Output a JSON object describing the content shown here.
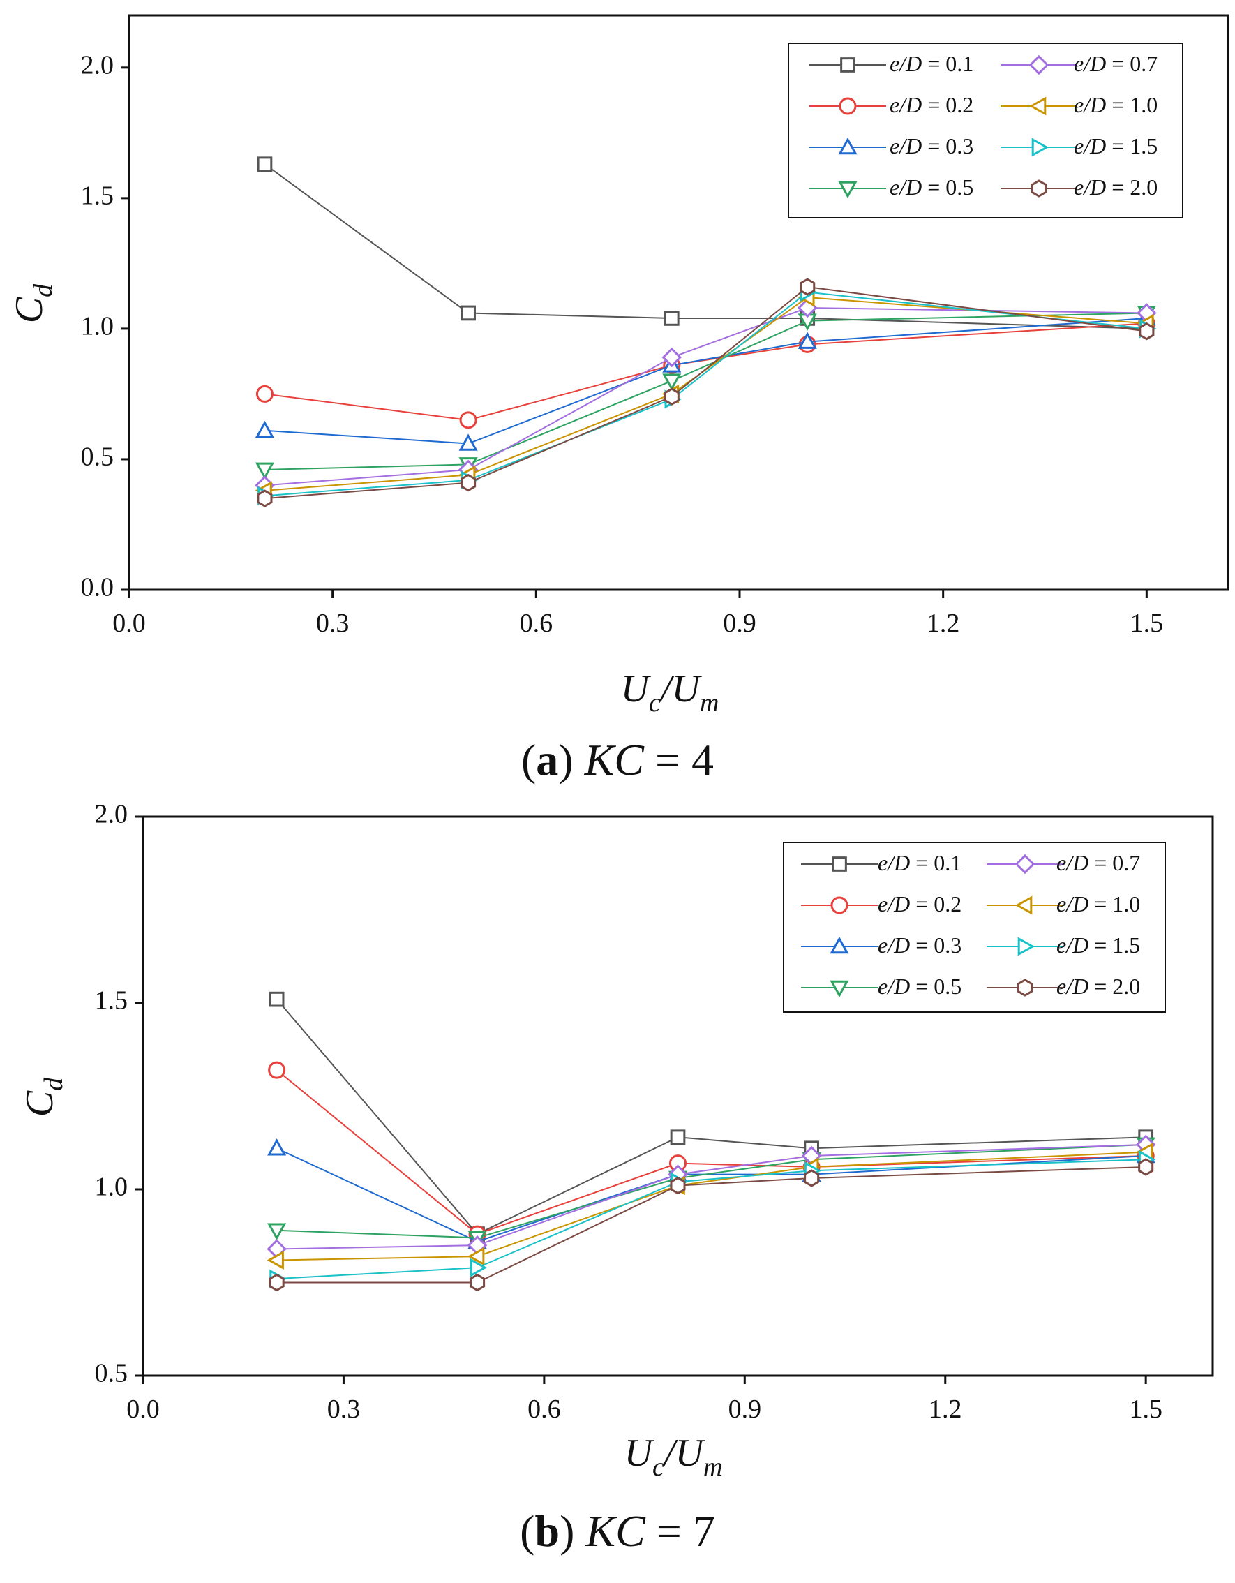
{
  "figure": {
    "panels": [
      {
        "caption_letter": "a",
        "caption_rest": "KC = 4"
      },
      {
        "caption_letter": "b",
        "caption_rest": "KC = 7"
      }
    ]
  },
  "chart_data": [
    {
      "type": "line",
      "title": "(a) KC = 4",
      "xlabel": "Uc/Um",
      "ylabel": "Cd",
      "xlim": [
        0.0,
        1.62
      ],
      "ylim": [
        0.0,
        2.2
      ],
      "xticks": [
        "0.0",
        "0.3",
        "0.6",
        "0.9",
        "1.2",
        "1.5"
      ],
      "yticks": [
        "0.0",
        "0.5",
        "1.0",
        "1.5",
        "2.0"
      ],
      "legend_position": "top-right",
      "x": [
        0.2,
        0.5,
        0.8,
        1.0,
        1.5
      ],
      "series": [
        {
          "name": "e/D = 0.1",
          "marker": "square",
          "color": "#555555",
          "values": [
            1.63,
            1.06,
            1.04,
            1.04,
            1.0
          ]
        },
        {
          "name": "e/D = 0.2",
          "marker": "circle",
          "color": "#e8403a",
          "values": [
            0.75,
            0.65,
            0.86,
            0.94,
            1.02
          ]
        },
        {
          "name": "e/D = 0.3",
          "marker": "triangle-up",
          "color": "#1f6ad1",
          "values": [
            0.61,
            0.56,
            0.86,
            0.95,
            1.04
          ]
        },
        {
          "name": "e/D = 0.5",
          "marker": "triangle-down",
          "color": "#2ea361",
          "values": [
            0.46,
            0.48,
            0.8,
            1.03,
            1.06
          ]
        },
        {
          "name": "e/D = 0.7",
          "marker": "diamond",
          "color": "#a36ee0",
          "values": [
            0.4,
            0.46,
            0.89,
            1.08,
            1.06
          ]
        },
        {
          "name": "e/D = 1.0",
          "marker": "triangle-left",
          "color": "#c99400",
          "values": [
            0.38,
            0.44,
            0.75,
            1.12,
            1.02
          ]
        },
        {
          "name": "e/D = 1.5",
          "marker": "triangle-right",
          "color": "#19c1c8",
          "values": [
            0.36,
            0.42,
            0.73,
            1.14,
            1.0
          ]
        },
        {
          "name": "e/D = 2.0",
          "marker": "hexagon",
          "color": "#7b4a43",
          "values": [
            0.35,
            0.41,
            0.74,
            1.16,
            0.99
          ]
        }
      ]
    },
    {
      "type": "line",
      "title": "(b) KC = 7",
      "xlabel": "Uc/Um",
      "ylabel": "Cd",
      "xlim": [
        0.0,
        1.6
      ],
      "ylim": [
        0.5,
        2.0
      ],
      "xticks": [
        "0.0",
        "0.3",
        "0.6",
        "0.9",
        "1.2",
        "1.5"
      ],
      "yticks": [
        "0.5",
        "1.0",
        "1.5",
        "2.0"
      ],
      "legend_position": "top-right",
      "x": [
        0.2,
        0.5,
        0.8,
        1.0,
        1.5
      ],
      "series": [
        {
          "name": "e/D = 0.1",
          "marker": "square",
          "color": "#555555",
          "values": [
            1.51,
            0.88,
            1.14,
            1.11,
            1.14
          ]
        },
        {
          "name": "e/D = 0.2",
          "marker": "circle",
          "color": "#e8403a",
          "values": [
            1.32,
            0.88,
            1.07,
            1.06,
            1.09
          ]
        },
        {
          "name": "e/D = 0.3",
          "marker": "triangle-up",
          "color": "#1f6ad1",
          "values": [
            1.11,
            0.86,
            1.04,
            1.04,
            1.09
          ]
        },
        {
          "name": "e/D = 0.5",
          "marker": "triangle-down",
          "color": "#2ea361",
          "values": [
            0.89,
            0.87,
            1.03,
            1.08,
            1.12
          ]
        },
        {
          "name": "e/D = 0.7",
          "marker": "diamond",
          "color": "#a36ee0",
          "values": [
            0.84,
            0.85,
            1.04,
            1.09,
            1.12
          ]
        },
        {
          "name": "e/D = 1.0",
          "marker": "triangle-left",
          "color": "#c99400",
          "values": [
            0.81,
            0.82,
            1.01,
            1.06,
            1.1
          ]
        },
        {
          "name": "e/D = 1.5",
          "marker": "triangle-right",
          "color": "#19c1c8",
          "values": [
            0.76,
            0.79,
            1.02,
            1.05,
            1.08
          ]
        },
        {
          "name": "e/D = 2.0",
          "marker": "hexagon",
          "color": "#7b4a43",
          "values": [
            0.75,
            0.75,
            1.01,
            1.03,
            1.06
          ]
        }
      ]
    }
  ]
}
